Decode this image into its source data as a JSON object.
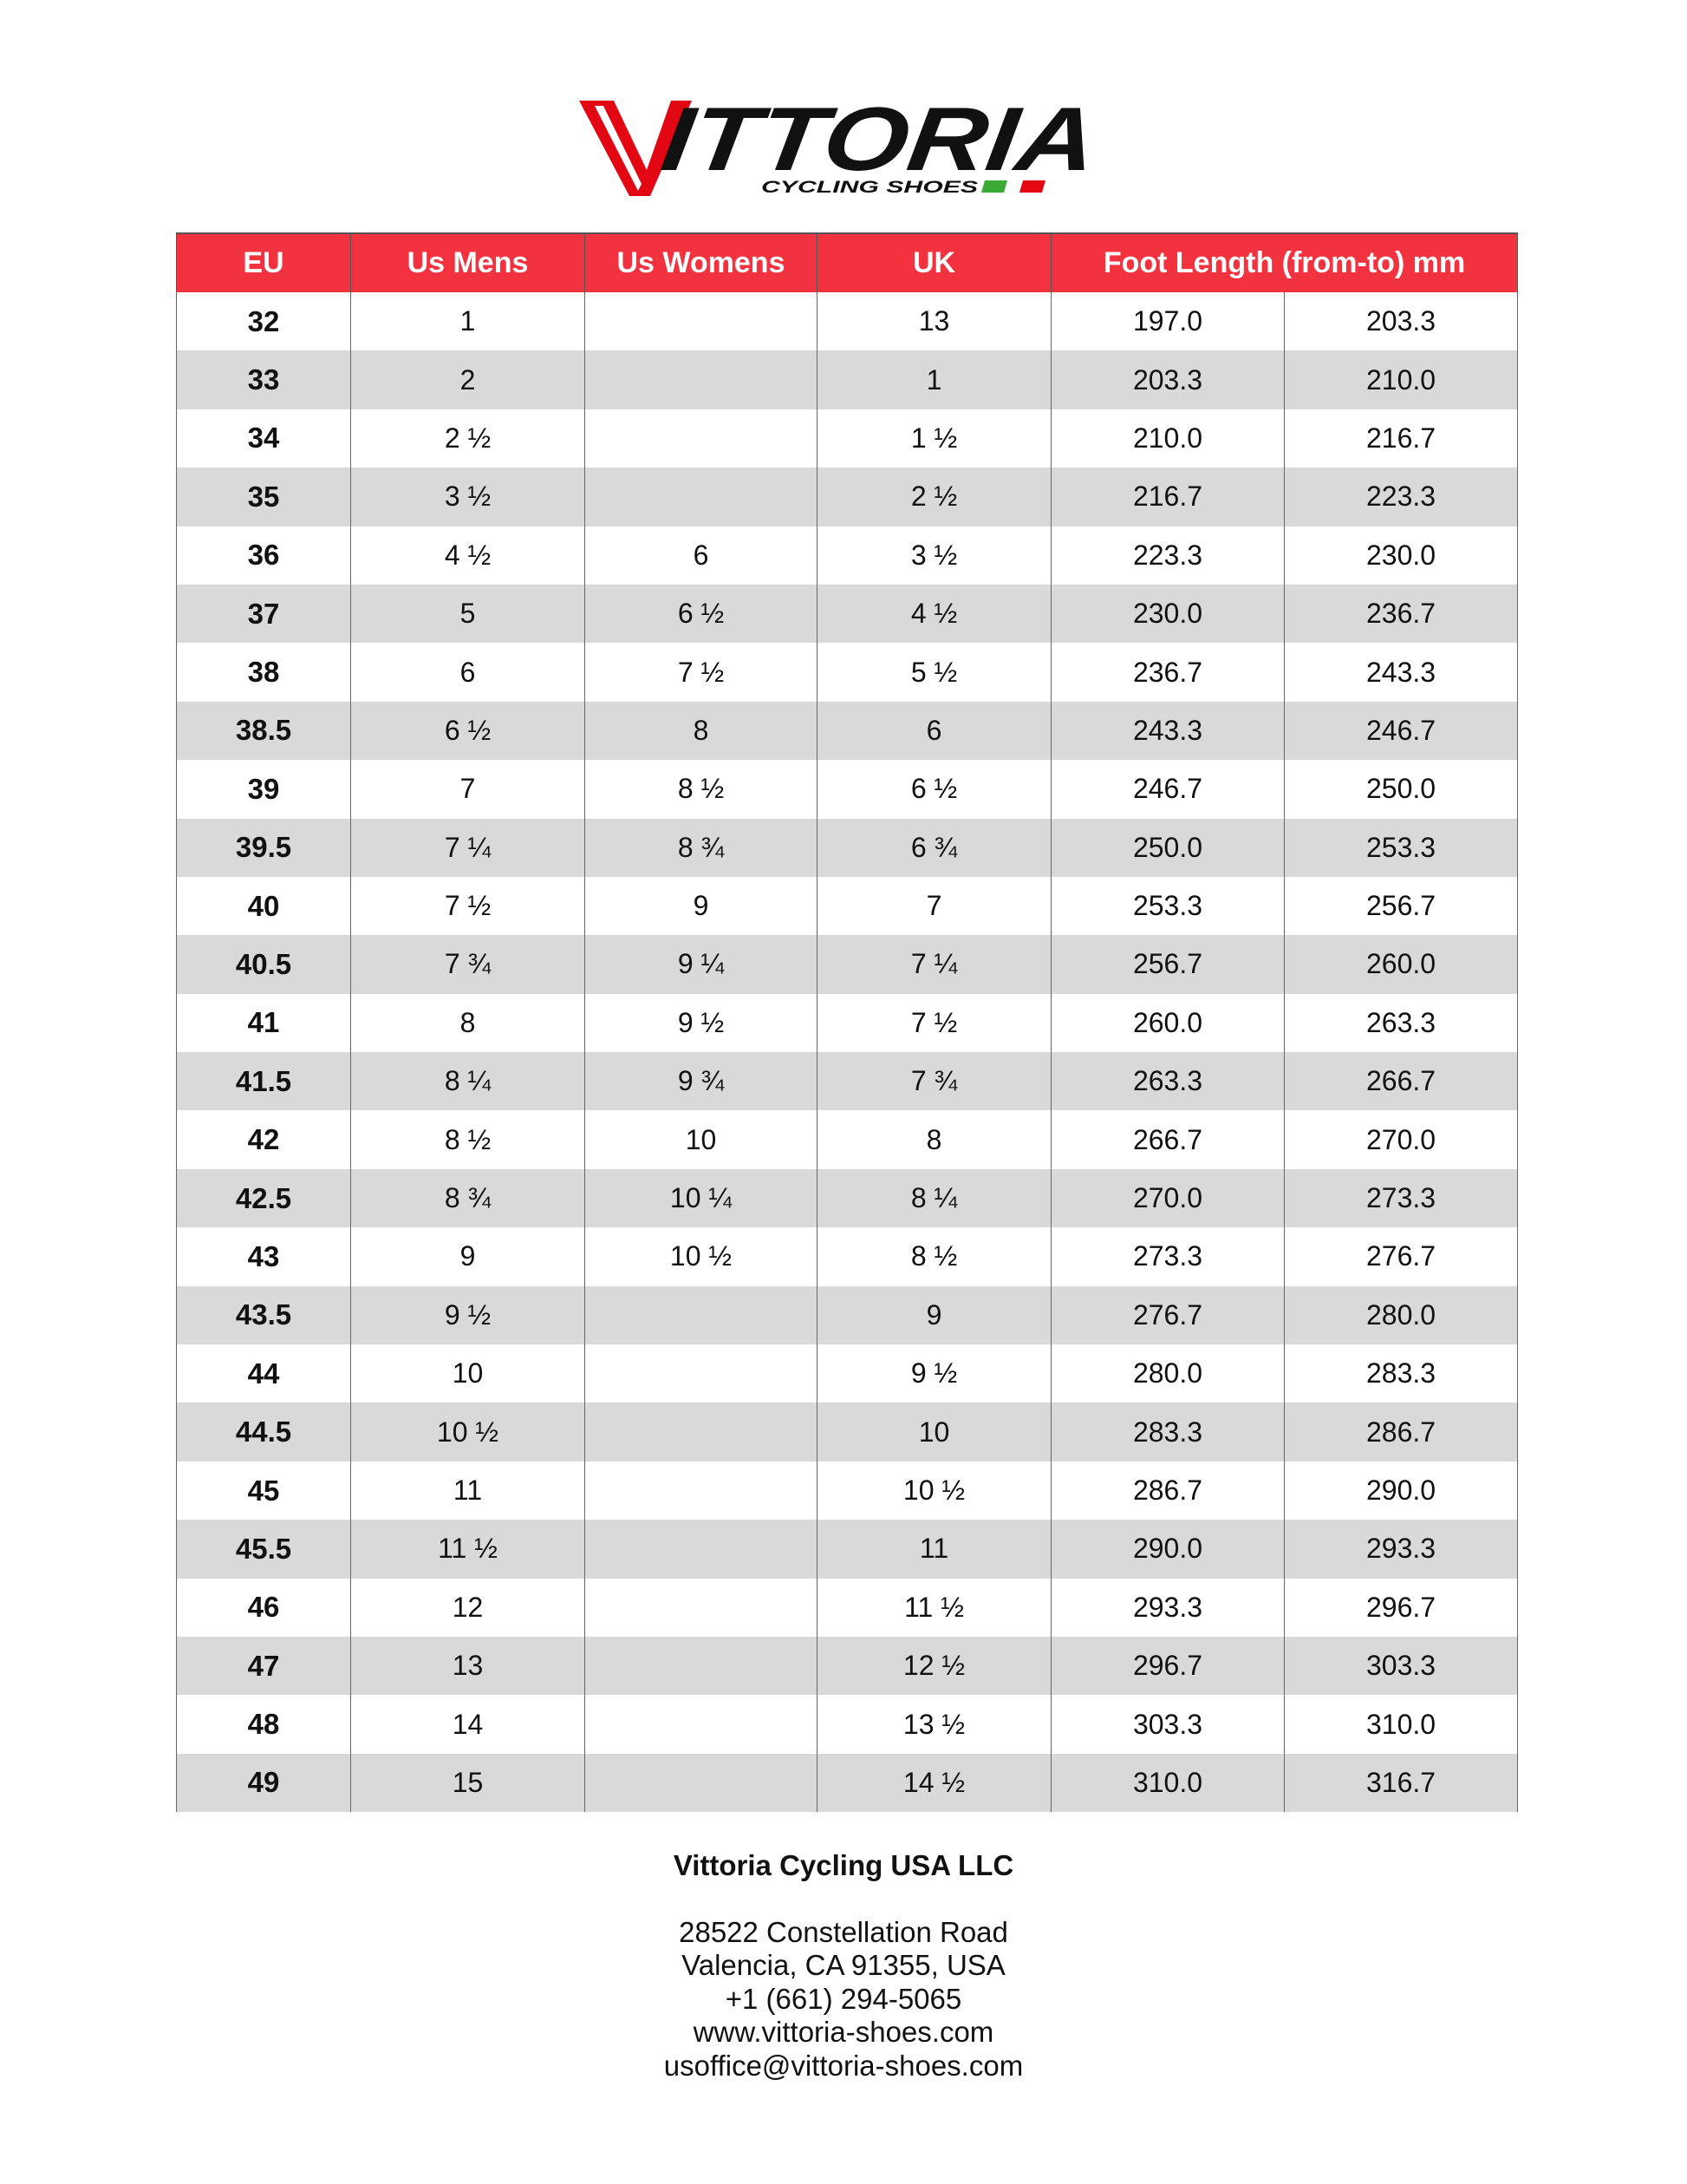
{
  "logo": {
    "brand": "VITTORIA",
    "tagline": "CYCLING SHOES",
    "colors": {
      "red": "#e30613",
      "black": "#111111",
      "green": "#3aaa35"
    }
  },
  "table": {
    "headers": [
      "EU",
      "Us Mens",
      "Us Womens",
      "UK",
      "Foot Length (from-to) mm"
    ],
    "header_color": "#f2333f",
    "stripe_color": "#d9d9d9",
    "rows": [
      [
        "32",
        "1",
        "",
        "13",
        "197.0",
        "203.3"
      ],
      [
        "33",
        "2",
        "",
        "1",
        "203.3",
        "210.0"
      ],
      [
        "34",
        "2 ½",
        "",
        "1 ½",
        "210.0",
        "216.7"
      ],
      [
        "35",
        "3 ½",
        "",
        "2 ½",
        "216.7",
        "223.3"
      ],
      [
        "36",
        "4 ½",
        "6",
        "3 ½",
        "223.3",
        "230.0"
      ],
      [
        "37",
        "5",
        "6 ½",
        "4 ½",
        "230.0",
        "236.7"
      ],
      [
        "38",
        "6",
        "7 ½",
        "5 ½",
        "236.7",
        "243.3"
      ],
      [
        "38.5",
        "6 ½",
        "8",
        "6",
        "243.3",
        "246.7"
      ],
      [
        "39",
        "7",
        "8 ½",
        "6 ½",
        "246.7",
        "250.0"
      ],
      [
        "39.5",
        "7 ¼",
        "8 ¾",
        "6 ¾",
        "250.0",
        "253.3"
      ],
      [
        "40",
        "7 ½",
        "9",
        "7",
        "253.3",
        "256.7"
      ],
      [
        "40.5",
        "7 ¾",
        "9 ¼",
        "7 ¼",
        "256.7",
        "260.0"
      ],
      [
        "41",
        "8",
        "9 ½",
        "7 ½",
        "260.0",
        "263.3"
      ],
      [
        "41.5",
        "8 ¼",
        "9 ¾",
        "7 ¾",
        "263.3",
        "266.7"
      ],
      [
        "42",
        "8 ½",
        "10",
        "8",
        "266.7",
        "270.0"
      ],
      [
        "42.5",
        "8 ¾",
        "10 ¼",
        "8 ¼",
        "270.0",
        "273.3"
      ],
      [
        "43",
        "9",
        "10 ½",
        "8 ½",
        "273.3",
        "276.7"
      ],
      [
        "43.5",
        "9 ½",
        "",
        "9",
        "276.7",
        "280.0"
      ],
      [
        "44",
        "10",
        "",
        "9 ½",
        "280.0",
        "283.3"
      ],
      [
        "44.5",
        "10 ½",
        "",
        "10",
        "283.3",
        "286.7"
      ],
      [
        "45",
        "11",
        "",
        "10 ½",
        "286.7",
        "290.0"
      ],
      [
        "45.5",
        "11 ½",
        "",
        "11",
        "290.0",
        "293.3"
      ],
      [
        "46",
        "12",
        "",
        "11 ½",
        "293.3",
        "296.7"
      ],
      [
        "47",
        "13",
        "",
        "12 ½",
        "296.7",
        "303.3"
      ],
      [
        "48",
        "14",
        "",
        "13 ½",
        "303.3",
        "310.0"
      ],
      [
        "49",
        "15",
        "",
        "14 ½",
        "310.0",
        "316.7"
      ]
    ]
  },
  "footer": {
    "company": "Vittoria Cycling USA LLC",
    "lines": [
      "28522 Constellation Road",
      "Valencia, CA 91355, USA",
      "+1 (661) 294-5065",
      "www.vittoria-shoes.com",
      "usoffice@vittoria-shoes.com"
    ]
  }
}
